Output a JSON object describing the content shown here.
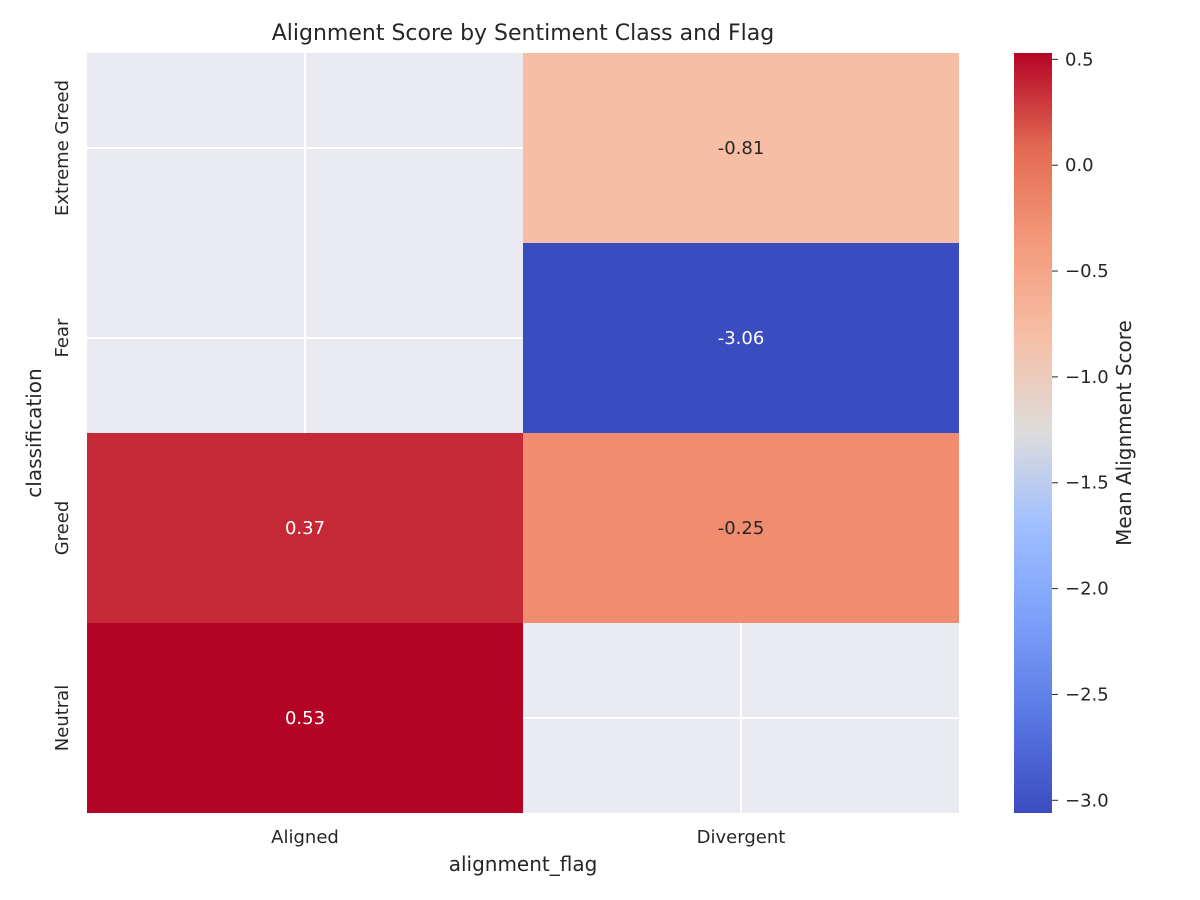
{
  "chart_data": {
    "type": "heatmap",
    "title": "Alignment Score by Sentiment Class and Flag",
    "xlabel": "alignment_flag",
    "ylabel": "classification",
    "x_categories": [
      "Aligned",
      "Divergent"
    ],
    "y_categories": [
      "Extreme Greed",
      "Fear",
      "Greed",
      "Neutral"
    ],
    "values": [
      [
        null,
        -0.81
      ],
      [
        null,
        -3.06
      ],
      [
        0.37,
        -0.25
      ],
      [
        0.53,
        null
      ]
    ],
    "value_labels": [
      [
        null,
        "-0.81"
      ],
      [
        null,
        "-3.06"
      ],
      [
        "0.37",
        "-0.25"
      ],
      [
        "0.53",
        null
      ]
    ],
    "colormap": "coolwarm",
    "colorbar": {
      "label": "Mean Alignment Score",
      "vmin": -3.06,
      "vmax": 0.53,
      "ticks": [
        0.5,
        0.0,
        -0.5,
        -1.0,
        -1.5,
        -2.0,
        -2.5,
        -3.0
      ],
      "tick_labels": [
        "0.5",
        "0.0",
        "−0.5",
        "−1.0",
        "−1.5",
        "−2.0",
        "−2.5",
        "−3.0"
      ]
    },
    "missing_color": "#eaeaf2",
    "grid": true
  }
}
